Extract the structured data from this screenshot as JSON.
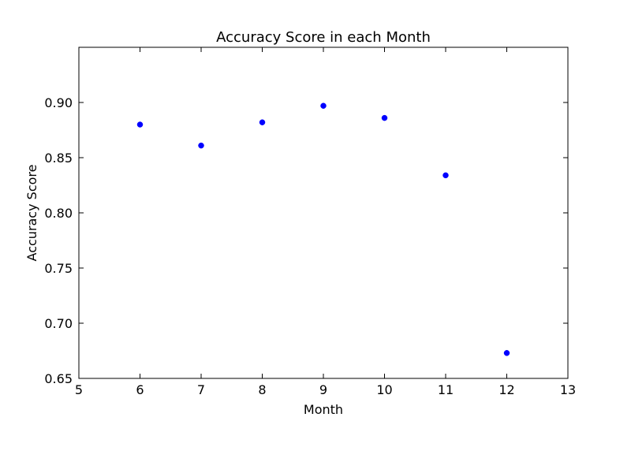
{
  "chart_data": {
    "type": "scatter",
    "title": "Accuracy Score in each Month",
    "xlabel": "Month",
    "ylabel": "Accuracy Score",
    "xlim": [
      5,
      13
    ],
    "ylim": [
      0.65,
      0.95
    ],
    "x_ticks": [
      "5",
      "6",
      "7",
      "8",
      "9",
      "10",
      "11",
      "12",
      "13"
    ],
    "y_ticks": [
      "0.65",
      "0.70",
      "0.75",
      "0.80",
      "0.85",
      "0.90"
    ],
    "grid": false,
    "legend": "none",
    "marker_color": "#0000ff",
    "series": [
      {
        "x": [
          6,
          7,
          8,
          9,
          10,
          11,
          12
        ],
        "y": [
          0.88,
          0.861,
          0.882,
          0.897,
          0.886,
          0.834,
          0.673
        ]
      }
    ]
  }
}
